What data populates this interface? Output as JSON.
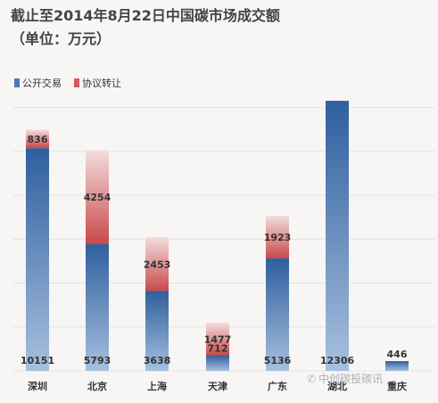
{
  "chart_data": {
    "type": "bar",
    "stacked": true,
    "title": "截止至2014年8月22日中国碳市场成交额",
    "subtitle": "（单位：万元）",
    "categories": [
      "深圳",
      "北京",
      "上海",
      "天津",
      "广东",
      "湖北",
      "重庆"
    ],
    "series": [
      {
        "name": "公开交易",
        "values": [
          10151,
          5793,
          3638,
          712,
          5136,
          12306,
          446
        ],
        "color": "#4a78b8"
      },
      {
        "name": "协议转让",
        "values": [
          836,
          4254,
          2453,
          1477,
          1923,
          0,
          0
        ],
        "color": "#d25a5a"
      }
    ],
    "ylim": [
      0,
      13000
    ],
    "grid": true,
    "legend": "top-left",
    "xlabel": "",
    "ylabel": ""
  },
  "watermark": {
    "text": "中创碳投碳讯",
    "icon": "wechat-icon"
  }
}
